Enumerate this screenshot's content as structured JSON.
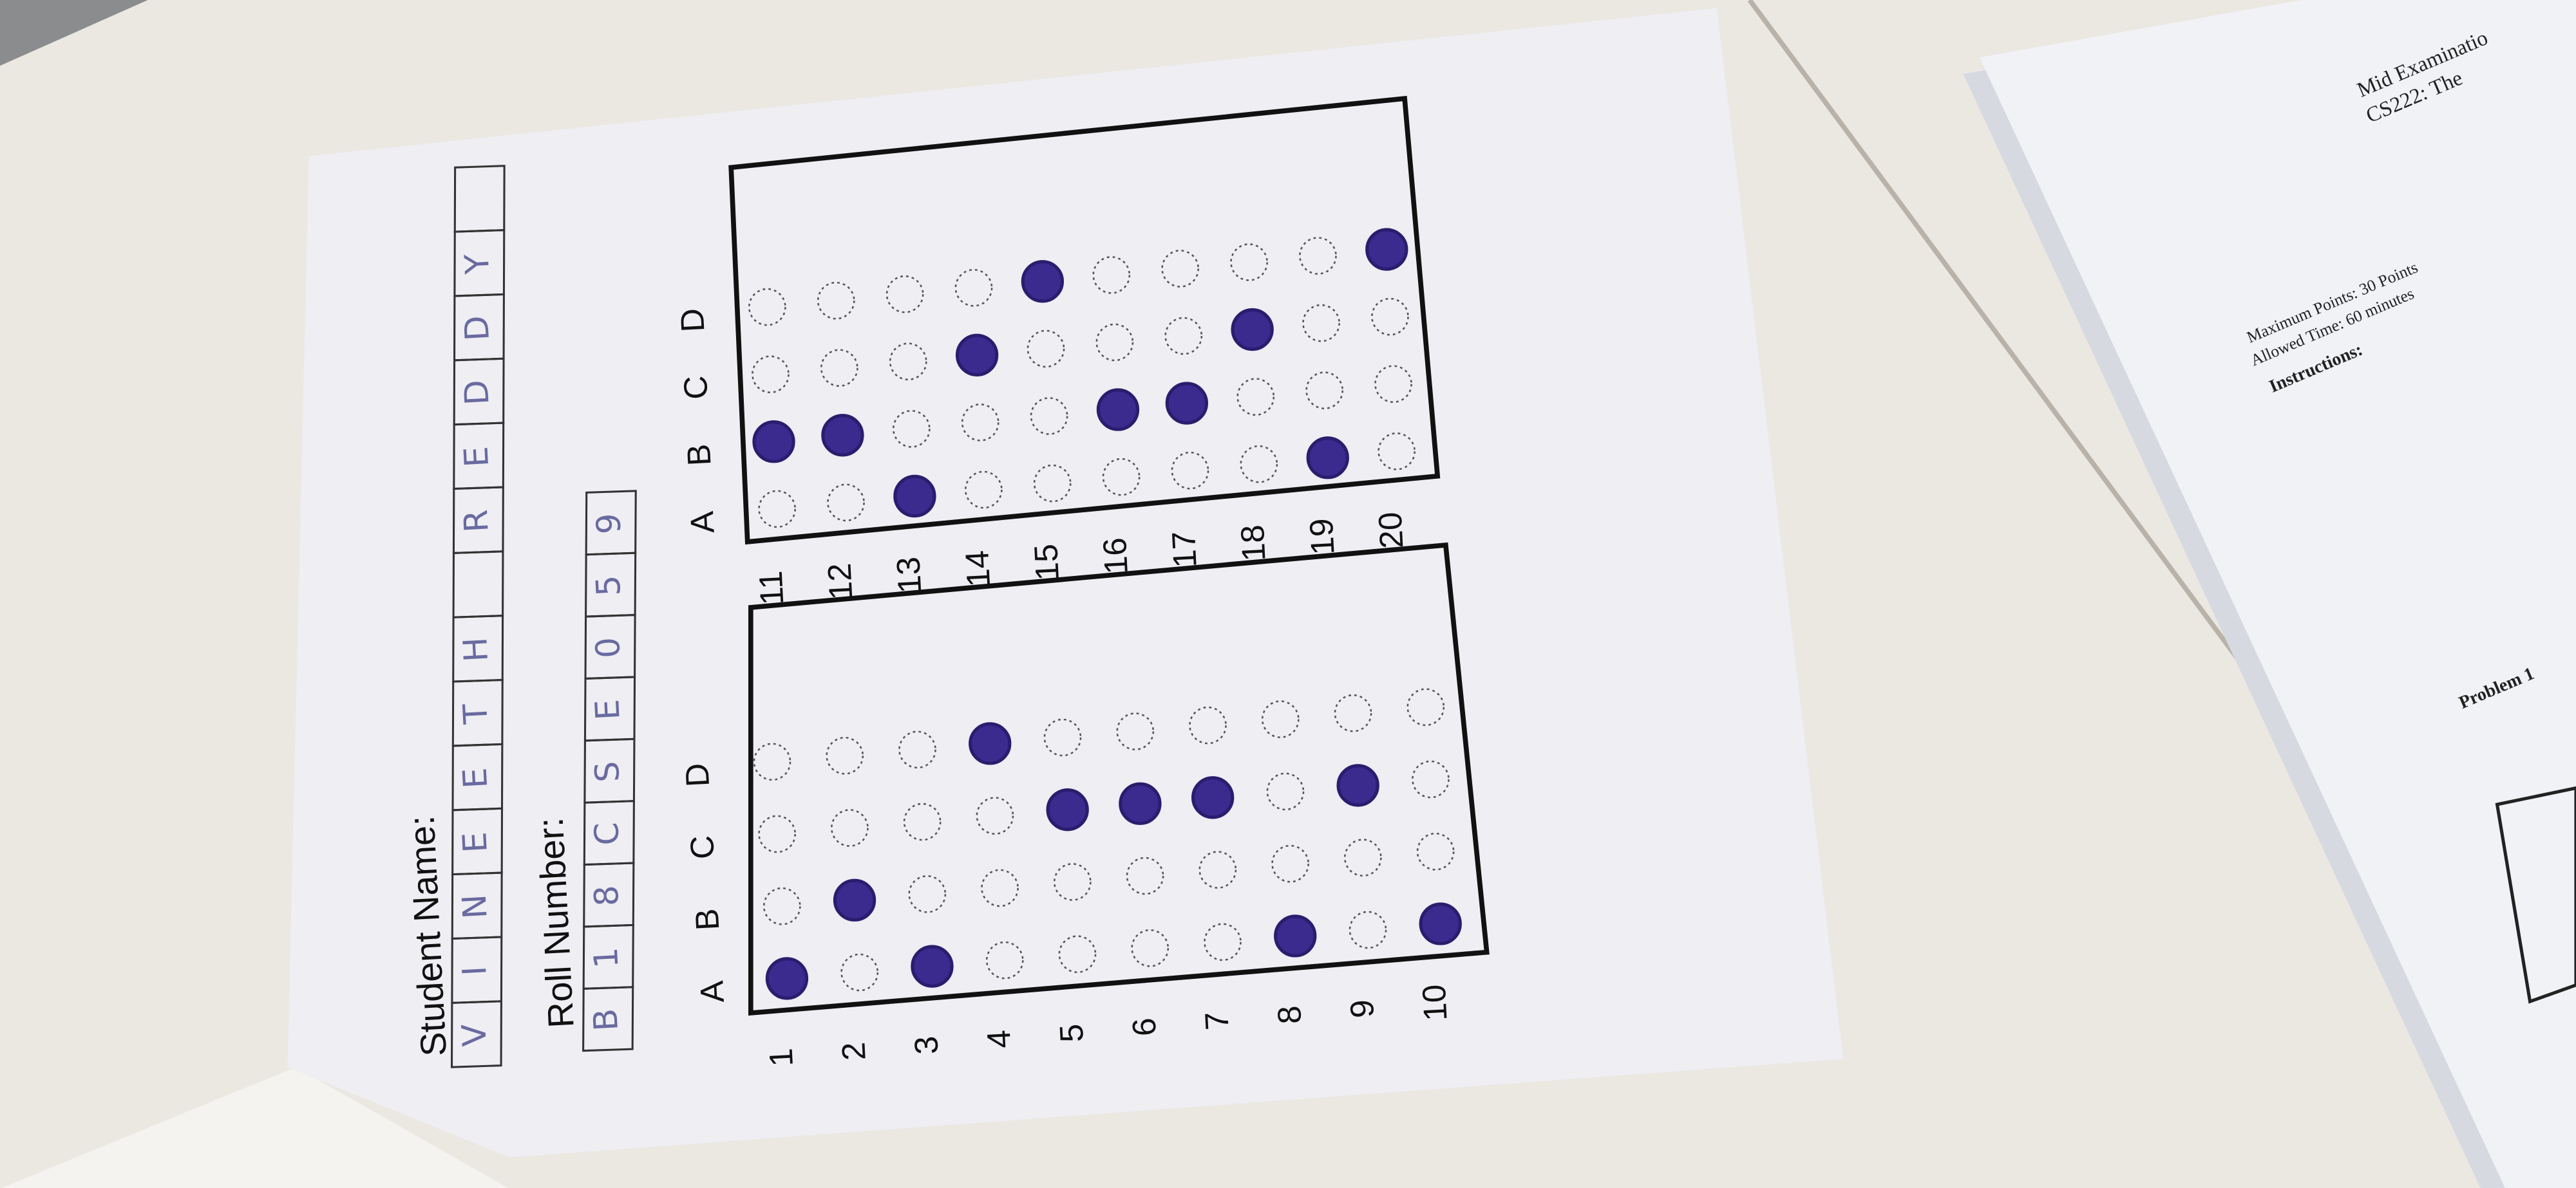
{
  "sheet": {
    "name_label": "Student Name:",
    "name_chars": [
      "V",
      "I",
      "N",
      "E",
      "E",
      "T",
      "H",
      null,
      "R",
      "E",
      "D",
      "D",
      "Y",
      null
    ],
    "roll_label": "Roll Number:",
    "roll_chars": [
      "B",
      "1",
      "8",
      "C",
      "S",
      "E",
      "0",
      "5",
      "9"
    ],
    "options": [
      "A",
      "B",
      "C",
      "D"
    ],
    "questions": [
      {
        "number": "1",
        "answer": 0
      },
      {
        "number": "2",
        "answer": 1
      },
      {
        "number": "3",
        "answer": 0
      },
      {
        "number": "4",
        "answer": 3
      },
      {
        "number": "5",
        "answer": 2
      },
      {
        "number": "6",
        "answer": 2
      },
      {
        "number": "7",
        "answer": 2
      },
      {
        "number": "8",
        "answer": 0
      },
      {
        "number": "9",
        "answer": 2
      },
      {
        "number": "10",
        "answer": 0
      },
      {
        "number": "11",
        "answer": 1
      },
      {
        "number": "12",
        "answer": 1
      },
      {
        "number": "13",
        "answer": 0
      },
      {
        "number": "14",
        "answer": 2
      },
      {
        "number": "15",
        "answer": 3
      },
      {
        "number": "16",
        "answer": 1
      },
      {
        "number": "17",
        "answer": 1
      },
      {
        "number": "18",
        "answer": 2
      },
      {
        "number": "19",
        "answer": 0
      },
      {
        "number": "20",
        "answer": 3
      }
    ]
  },
  "question_paper": {
    "lines": [
      "Mid Examinatio",
      "CS222: The",
      "Maximum Points: 30 Points",
      "Allowed Time: 60 minutes",
      "Instructions:",
      "Problem 1"
    ]
  }
}
